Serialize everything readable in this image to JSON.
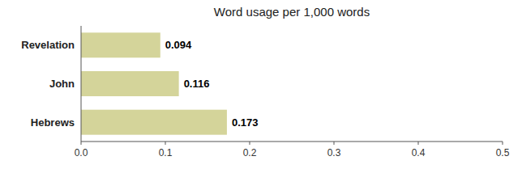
{
  "chart_data": {
    "type": "bar",
    "orientation": "horizontal",
    "title": "Word usage per 1,000 words",
    "categories": [
      "Hebrews",
      "John",
      "Revelation"
    ],
    "values": [
      0.173,
      0.116,
      0.094
    ],
    "color": "#d4d49a",
    "data_labels": true,
    "grid": false,
    "xlim": [
      0,
      0.5
    ],
    "xticks": [
      {
        "value": 0,
        "label": "0.0"
      },
      0.1,
      0.2,
      0.3,
      0.4,
      0.5
    ]
  }
}
